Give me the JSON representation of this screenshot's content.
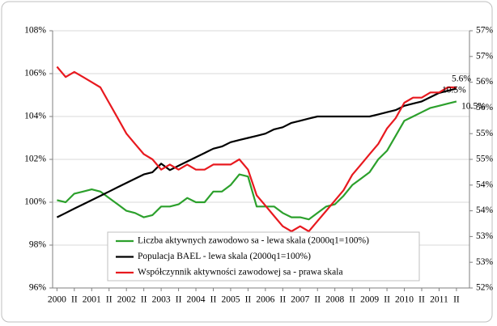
{
  "chart_data": {
    "type": "line",
    "categories": [
      "2000",
      null,
      "II",
      null,
      "2001",
      null,
      "II",
      null,
      "2002",
      null,
      "II",
      null,
      "2003",
      null,
      "II",
      null,
      "2004",
      null,
      "II",
      null,
      "2005",
      null,
      "II",
      null,
      "2006",
      null,
      "II",
      null,
      "2007",
      null,
      "II",
      null,
      "2008",
      null,
      "II",
      null,
      "2009",
      null,
      "II",
      null,
      "2010",
      null,
      "II",
      null,
      "2011",
      null,
      "II",
      null
    ],
    "series": [
      {
        "name": "Liczba aktywnych zawodowo sa - lewa skala (2000q1=100%)",
        "color": "#2ca02c",
        "axis": "y",
        "values": [
          100.1,
          100.0,
          100.4,
          100.5,
          100.6,
          100.5,
          100.2,
          99.9,
          99.6,
          99.5,
          99.3,
          99.4,
          99.8,
          99.8,
          99.9,
          100.2,
          100.0,
          100.0,
          100.5,
          100.5,
          100.8,
          101.3,
          101.2,
          99.8,
          99.8,
          99.8,
          99.5,
          99.3,
          99.3,
          99.2,
          99.5,
          99.8,
          99.9,
          100.3,
          100.8,
          101.1,
          101.4,
          102.0,
          102.4,
          103.1,
          103.8,
          104.0,
          104.2,
          104.4,
          104.5,
          104.6,
          104.7,
          null
        ]
      },
      {
        "name": "Populacja BAEL - lewa skala (2000q1=100%)",
        "color": "#000000",
        "axis": "y",
        "values": [
          99.3,
          99.5,
          99.7,
          99.9,
          100.1,
          100.3,
          100.5,
          100.7,
          100.9,
          101.1,
          101.3,
          101.4,
          101.8,
          101.5,
          101.7,
          101.9,
          102.1,
          102.3,
          102.5,
          102.6,
          102.8,
          102.9,
          103.0,
          103.1,
          103.2,
          103.4,
          103.5,
          103.7,
          103.8,
          103.9,
          104.0,
          104.0,
          104.0,
          104.0,
          104.0,
          104.0,
          104.0,
          104.1,
          104.2,
          104.3,
          104.5,
          104.6,
          104.7,
          104.9,
          105.1,
          105.2,
          105.3,
          null
        ]
      },
      {
        "name": "Współczynnik aktywności zawodowej sa - prawa skala",
        "color": "#e8191f",
        "axis": "y2",
        "values": [
          56.3,
          56.1,
          56.2,
          56.1,
          56.0,
          55.9,
          55.6,
          55.3,
          55.0,
          54.8,
          54.6,
          54.5,
          54.3,
          54.4,
          54.3,
          54.4,
          54.3,
          54.3,
          54.4,
          54.4,
          54.4,
          54.5,
          54.3,
          53.8,
          53.6,
          53.4,
          53.2,
          53.1,
          53.2,
          53.1,
          53.3,
          53.5,
          53.7,
          53.9,
          54.2,
          54.4,
          54.6,
          54.8,
          55.1,
          55.3,
          55.6,
          55.7,
          55.7,
          55.8,
          55.8,
          55.9,
          55.9,
          null
        ]
      }
    ],
    "ylim": [
      96,
      108
    ],
    "yticks": [
      {
        "value": 96,
        "label": "96%"
      },
      {
        "value": 98,
        "label": "98%"
      },
      {
        "value": 100,
        "label": "100%"
      },
      {
        "value": 102,
        "label": "102%"
      },
      {
        "value": 104,
        "label": "104%"
      },
      {
        "value": 106,
        "label": "106%"
      },
      {
        "value": 108,
        "label": "108%"
      }
    ],
    "y2lim": [
      52,
      57
    ],
    "y2ticks": [
      {
        "value": 52,
        "label": "52%"
      },
      {
        "value": 52.5,
        "label": "53%"
      },
      {
        "value": 53,
        "label": "53%"
      },
      {
        "value": 53.5,
        "label": "54%"
      },
      {
        "value": 54,
        "label": "54%"
      },
      {
        "value": 54.5,
        "label": "55%"
      },
      {
        "value": 55,
        "label": "55%"
      },
      {
        "value": 55.5,
        "label": "56%"
      },
      {
        "value": 56,
        "label": "56%"
      },
      {
        "value": 56.5,
        "label": "57%"
      },
      {
        "value": 57,
        "label": "57%"
      }
    ],
    "grid": true,
    "legend": "bottom-left",
    "annotations": [
      "5.6%",
      "10.5%",
      "10.5%"
    ]
  }
}
